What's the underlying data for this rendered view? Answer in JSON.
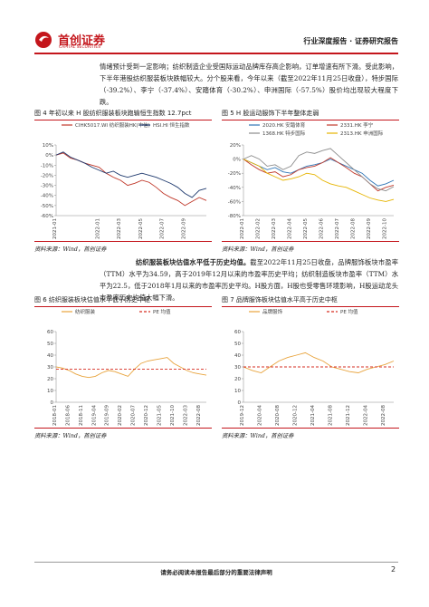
{
  "header": {
    "logo": "首创证券",
    "logo_en": "CAPITAL SECURITIES",
    "report_type": "行业深度报告 · 证券研究报告"
  },
  "paragraphs": [
    {
      "text": "情绪预计受到一定影响；纺织制造企业受国际运动品牌库存高企影响，订单增速有所下滑。受此影响，下半年港股纺织服装板块跌幅较大。分个股来看，今年以来（截至2022年11月25日收盘），特步国际（-39.2%）、李宁（-37.4%）、安踏体育（-30.2%）、申洲国际（-57.5%）股价均出现较大程度下跌。"
    },
    {
      "lead": "纺织服装板块估值水平低于历史均值。",
      "text": "截至2022年11月25日收盘，品牌服饰板块市盈率（TTM）水平为34.59，高于2019年12月以来的市盈率历史平均；纺织制造板块市盈率（TTM）水平为22.5，低于2018年1月以来的市盈率历史平均。H股方面，H股也受零售环境影响，H股运动龙头市盈率历史均值大幅下滑。"
    }
  ],
  "figures": [
    {
      "title": "图 4 年初以来 H 股纺织服装板块跑输恒生指数 12.7pct",
      "source": "资料来源：Wind，首创证券",
      "chart": {
        "type": "line",
        "ylim": [
          -60,
          10
        ],
        "yticks": [
          {
            "value": 10,
            "label": "10%"
          },
          {
            "value": 0,
            "label": "0%"
          },
          {
            "value": -10,
            "label": "-10%"
          },
          {
            "value": -20,
            "label": "-20%"
          },
          {
            "value": -30,
            "label": "-30%"
          },
          {
            "value": -40,
            "label": "-40%"
          },
          {
            "value": -50,
            "label": "-50%"
          },
          {
            "value": -60,
            "label": "-60%"
          }
        ],
        "categories": [
          "2021-01",
          null,
          null,
          null,
          null,
          null,
          "2022-01",
          null,
          null,
          "2022-03",
          null,
          null,
          "2022-05",
          null,
          null,
          "2022-07",
          null,
          null,
          "2022-09",
          null,
          null,
          null
        ],
        "series": [
          {
            "name": "CIHK5017.WI 纺织服装HK(中信)",
            "color": "#c0392b",
            "values": [
              0,
              2,
              -3,
              -5,
              -8,
              -10,
              -12,
              -18,
              -22,
              -25,
              -30,
              -28,
              -25,
              -27,
              -32,
              -38,
              -42,
              -45,
              -50,
              -46,
              -42,
              -45
            ]
          },
          {
            "name": "HSI.HI 恒生指数",
            "color": "#1f3a6e",
            "values": [
              0,
              3,
              -2,
              -5,
              -8,
              -12,
              -15,
              -18,
              -16,
              -20,
              -22,
              -20,
              -18,
              -20,
              -22,
              -25,
              -28,
              -32,
              -38,
              -42,
              -35,
              -33
            ]
          }
        ]
      }
    },
    {
      "title": "图 5 H 股运动服饰下半年整体走弱",
      "source": "资料来源：Wind，首创证券",
      "chart": {
        "type": "line",
        "ylim": [
          -80,
          20
        ],
        "yticks": [
          {
            "value": 20,
            "label": "20%"
          },
          {
            "value": 0,
            "label": "0%"
          },
          {
            "value": -20,
            "label": "-20%"
          },
          {
            "value": -40,
            "label": "-40%"
          },
          {
            "value": -60,
            "label": "-60%"
          },
          {
            "value": -80,
            "label": "-80%"
          }
        ],
        "categories": [
          "2022-01",
          null,
          "2022-02",
          null,
          "2022-03",
          null,
          "2022-04",
          null,
          "2022-05",
          null,
          "2022-06",
          null,
          "2022-07",
          null,
          "2022-08",
          null,
          "2022-09",
          null,
          "2022-10",
          null
        ],
        "series": [
          {
            "name": "2020.HK 安踏体育",
            "color": "#2e75b6",
            "values": [
              0,
              -5,
              -10,
              -15,
              -12,
              -18,
              -20,
              -15,
              -10,
              -8,
              -5,
              0,
              -5,
              -10,
              -15,
              -20,
              -30,
              -38,
              -35,
              -30
            ]
          },
          {
            "name": "2331.HK 李宁",
            "color": "#c0392b",
            "values": [
              0,
              -8,
              -15,
              -20,
              -18,
              -25,
              -22,
              -15,
              -12,
              -10,
              -5,
              2,
              -5,
              -12,
              -20,
              -25,
              -35,
              -45,
              -40,
              -37
            ]
          },
          {
            "name": "1368.HK 特步国际",
            "color": "#8c8c8c",
            "values": [
              0,
              5,
              0,
              -10,
              -8,
              -15,
              -10,
              5,
              10,
              8,
              12,
              15,
              5,
              -5,
              -15,
              -25,
              -35,
              -42,
              -45,
              -39
            ]
          },
          {
            "name": "2313.HK 申洲国际",
            "color": "#e6b400",
            "values": [
              0,
              -5,
              -10,
              -20,
              -25,
              -30,
              -28,
              -25,
              -20,
              -22,
              -30,
              -35,
              -38,
              -40,
              -45,
              -50,
              -55,
              -58,
              -60,
              -57
            ]
          }
        ]
      }
    },
    {
      "title": "图 6 纺织服装板块估值水平低于历史中枢",
      "source": "资料来源：Wind，首创证券",
      "chart": {
        "type": "line",
        "ylim": [
          0,
          60
        ],
        "yticks": [
          0,
          10,
          20,
          30,
          40,
          50,
          60
        ],
        "categories": [
          "2018-01",
          null,
          "2018-06",
          null,
          "2018-11",
          null,
          "2019-04",
          null,
          "2019-09",
          null,
          "2020-02",
          null,
          "2020-07",
          null,
          "2020-12",
          null,
          "2021-05",
          null,
          "2021-10",
          null,
          "2022-03",
          null,
          "2022-08",
          null
        ],
        "series": [
          {
            "name": "纺织服装",
            "color": "#e8a33c",
            "values": [
              30,
              29,
              27,
              24,
              22,
              21,
              22,
              25,
              27,
              26,
              24,
              22,
              28,
              33,
              35,
              36,
              37,
              38,
              33,
              30,
              27,
              25,
              24,
              23
            ]
          },
          {
            "name": "PE 均值",
            "color": "#d62d20",
            "dash": true,
            "mean": 28
          }
        ]
      }
    },
    {
      "title": "图 7 品牌服饰板块估值水平高于历史中枢",
      "source": "资料来源：Wind，首创证券",
      "chart": {
        "type": "line",
        "ylim": [
          0,
          60
        ],
        "yticks": [
          0,
          10,
          20,
          30,
          40,
          50,
          60
        ],
        "categories": [
          "2019-12",
          null,
          "2020-04",
          null,
          "2020-08",
          null,
          "2020-12",
          null,
          "2021-04",
          null,
          "2021-08",
          null,
          "2021-12",
          null,
          "2022-04",
          null,
          "2022-08",
          null
        ],
        "series": [
          {
            "name": "品牌服饰",
            "color": "#e8a33c",
            "values": [
              30,
              27,
              25,
              30,
              35,
              38,
              40,
              42,
              38,
              35,
              30,
              28,
              26,
              25,
              28,
              30,
              32,
              35
            ]
          },
          {
            "name": "PE 均值",
            "color": "#d62d20",
            "dash": true,
            "mean": 30
          }
        ]
      }
    }
  ],
  "footer": {
    "disclaimer": "请务必阅读本报告最后部分的重要法律声明",
    "page": 2
  }
}
